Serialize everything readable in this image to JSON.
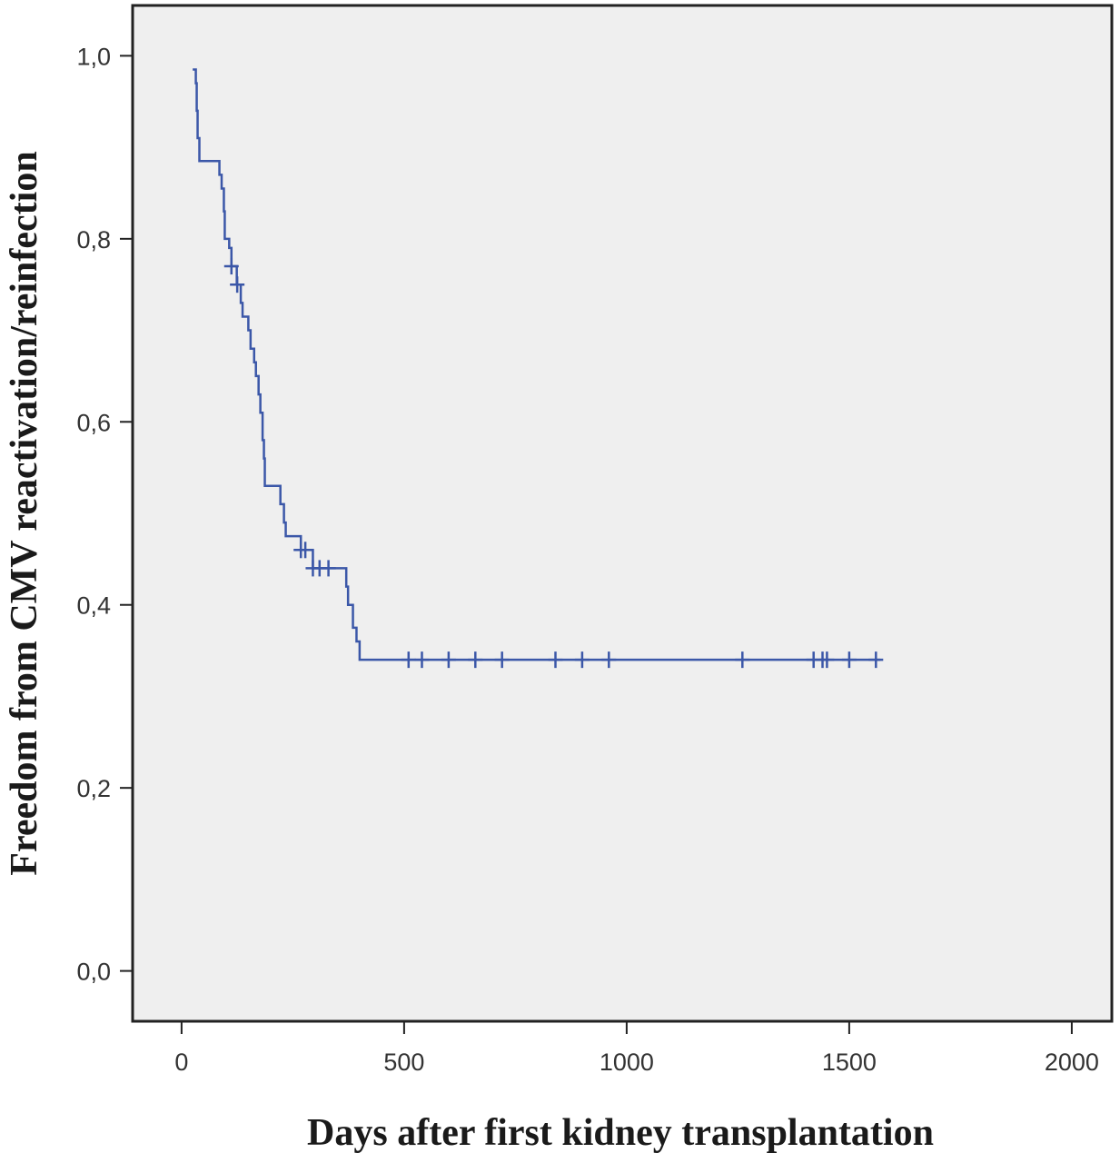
{
  "chart_data": {
    "type": "line",
    "title": "",
    "xlabel": "Days after  first kidney transplantation",
    "ylabel": "Freedom from CMV reactivation/reinfection",
    "xlim": [
      -110,
      2090
    ],
    "ylim": [
      -0.055,
      1.055
    ],
    "x_ticks": [
      0,
      500,
      1000,
      1500,
      2000
    ],
    "x_tick_labels": [
      "0",
      "500",
      "1000",
      "1500",
      "2000"
    ],
    "y_ticks": [
      0.0,
      0.2,
      0.4,
      0.6,
      0.8,
      1.0
    ],
    "y_tick_labels": [
      "0,0",
      "0,2",
      "0,4",
      "0,6",
      "0,8",
      "1,0"
    ],
    "grid": false,
    "plot_background": "#efefef",
    "series": [
      {
        "color": "#3b57a8",
        "steps": [
          [
            25,
            0.985
          ],
          [
            32,
            0.97
          ],
          [
            34,
            0.94
          ],
          [
            36,
            0.91
          ],
          [
            40,
            0.885
          ],
          [
            85,
            0.87
          ],
          [
            90,
            0.855
          ],
          [
            95,
            0.83
          ],
          [
            97,
            0.8
          ],
          [
            107,
            0.79
          ],
          [
            112,
            0.77
          ],
          [
            124,
            0.75
          ],
          [
            133,
            0.73
          ],
          [
            137,
            0.715
          ],
          [
            150,
            0.7
          ],
          [
            155,
            0.68
          ],
          [
            163,
            0.665
          ],
          [
            167,
            0.65
          ],
          [
            173,
            0.63
          ],
          [
            177,
            0.61
          ],
          [
            182,
            0.58
          ],
          [
            185,
            0.56
          ],
          [
            187,
            0.53
          ],
          [
            222,
            0.51
          ],
          [
            230,
            0.49
          ],
          [
            234,
            0.475
          ],
          [
            268,
            0.46
          ],
          [
            295,
            0.44
          ],
          [
            370,
            0.42
          ],
          [
            374,
            0.4
          ],
          [
            385,
            0.375
          ],
          [
            393,
            0.36
          ],
          [
            400,
            0.34
          ],
          [
            1570,
            0.34
          ]
        ],
        "censored_x": [
          112,
          125,
          268,
          278,
          295,
          310,
          330,
          510,
          540,
          600,
          660,
          720,
          840,
          900,
          960,
          1260,
          1420,
          1440,
          1450,
          1500,
          1560
        ]
      }
    ]
  }
}
